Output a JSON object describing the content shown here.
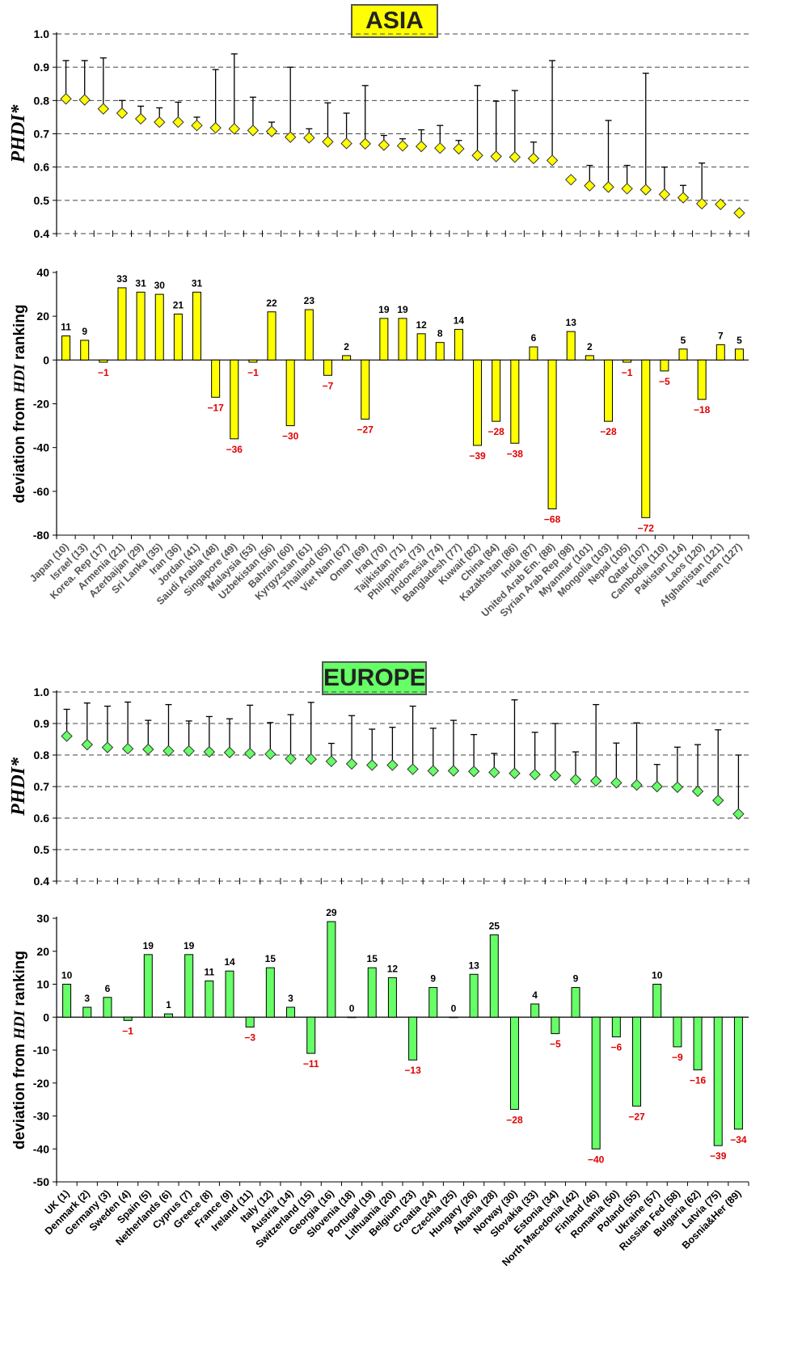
{
  "chart_data": [
    {
      "type": "scatter",
      "panel": "ASIA PHDI",
      "title": "ASIA",
      "ylabel": "PHDI*",
      "ylim": [
        0.4,
        1.0
      ],
      "yticks": [
        "0.4",
        "0.5",
        "0.6",
        "0.7",
        "0.8",
        "0.9",
        "1.0"
      ],
      "grid": true,
      "marker_color": "#ffff00",
      "categories": [
        "Japan (10)",
        "Israel (13)",
        "Korea. Rep (17)",
        "Armenia (21)",
        "Azerbaijan (29)",
        "Sri Lanka (35)",
        "Iran (36)",
        "Jordan (41)",
        "Saudi Arabia (48)",
        "Singapore (49)",
        "Malaysia (53)",
        "Uzbekistan (56)",
        "Bahrain (60)",
        "Kyrgyzstan (61)",
        "Thailand (65)",
        "Viet Nam (67)",
        "Oman (69)",
        "Iraq (70)",
        "Tajikistan (71)",
        "Philippines (73)",
        "Indonesia (74)",
        "Bangladesh (77)",
        "Kuwait (82)",
        "China (84)",
        "Kazakhstan (86)",
        "India (87)",
        "United Arab Em. (88)",
        "Syrian Arab Rep (98)",
        "Myanmar (101)",
        "Mongolia (103)",
        "Nepal (105)",
        "Qatar (107)",
        "Cambodia (110)",
        "Pakistan (114)",
        "Laos (120)",
        "Afghanistan (121)",
        "Yemen (127)"
      ],
      "values": [
        0.805,
        0.802,
        0.775,
        0.762,
        0.745,
        0.735,
        0.735,
        0.725,
        0.718,
        0.715,
        0.71,
        0.707,
        0.69,
        0.688,
        0.676,
        0.671,
        0.67,
        0.666,
        0.664,
        0.662,
        0.657,
        0.655,
        0.635,
        0.632,
        0.63,
        0.626,
        0.62,
        0.562,
        0.544,
        0.54,
        0.535,
        0.532,
        0.518,
        0.508,
        0.49,
        0.488,
        0.462
      ],
      "error_bar_top": [
        0.92,
        0.92,
        0.928,
        0.8,
        0.783,
        0.778,
        0.795,
        0.75,
        0.893,
        0.94,
        0.81,
        0.735,
        0.9,
        0.715,
        0.793,
        0.762,
        0.845,
        0.695,
        0.685,
        0.712,
        0.725,
        0.68,
        0.845,
        0.798,
        0.83,
        0.675,
        0.92,
        null,
        0.605,
        0.74,
        0.605,
        0.882,
        0.6,
        0.545,
        0.612,
        null,
        null
      ]
    },
    {
      "type": "bar",
      "panel": "ASIA deviation",
      "ylabel": "deviation from HDI ranking",
      "ylim": [
        -80,
        40
      ],
      "yticks": [
        "40",
        "20",
        "0",
        "-20",
        "-40",
        "-60",
        "-80"
      ],
      "grid": false,
      "bar_color": "#ffff00",
      "categories": [
        "Japan (10)",
        "Israel (13)",
        "Korea. Rep (17)",
        "Armenia (21)",
        "Azerbaijan (29)",
        "Sri Lanka (35)",
        "Iran (36)",
        "Jordan (41)",
        "Saudi Arabia (48)",
        "Singapore (49)",
        "Malaysia (53)",
        "Uzbekistan (56)",
        "Bahrain (60)",
        "Kyrgyzstan (61)",
        "Thailand (65)",
        "Viet Nam (67)",
        "Oman (69)",
        "Iraq (70)",
        "Tajikistan (71)",
        "Philippines (73)",
        "Indonesia (74)",
        "Bangladesh (77)",
        "Kuwait (82)",
        "China (84)",
        "Kazakhstan (86)",
        "India (87)",
        "United Arab Em. (88)",
        "Syrian Arab Rep (98)",
        "Myanmar (101)",
        "Mongolia (103)",
        "Nepal (105)",
        "Qatar (107)",
        "Cambodia (110)",
        "Pakistan (114)",
        "Laos (120)",
        "Afghanistan (121)",
        "Yemen (127)"
      ],
      "values": [
        11,
        9,
        -1,
        33,
        31,
        30,
        21,
        31,
        -17,
        -36,
        -1,
        22,
        -30,
        23,
        -7,
        2,
        -27,
        19,
        19,
        12,
        8,
        14,
        -39,
        -28,
        -38,
        6,
        -68,
        13,
        2,
        -28,
        -1,
        -72,
        -5,
        5,
        -18,
        7,
        5
      ],
      "labels": [
        "11",
        "9",
        "−1",
        "33",
        "31",
        "30",
        "21",
        "31",
        "−17",
        "−36",
        "−1",
        "22",
        "−30",
        "23",
        "−7",
        "2",
        "−27",
        "19",
        "19",
        "12",
        "8",
        "14",
        "−39",
        "−28",
        "−38",
        "6",
        "−68",
        "13",
        "2",
        "−28",
        "−1",
        "−72",
        "−5",
        "5",
        "−18",
        "7",
        "5"
      ]
    },
    {
      "type": "scatter",
      "panel": "EUROPE PHDI",
      "title": "EUROPE",
      "ylabel": "PHDI*",
      "ylim": [
        0.4,
        1.0
      ],
      "yticks": [
        "0.4",
        "0.5",
        "0.6",
        "0.7",
        "0.8",
        "0.9",
        "1.0"
      ],
      "grid": true,
      "marker_color": "#66ff66",
      "categories": [
        "UK (1)",
        "Denmark (2)",
        "Germany (3)",
        "Sweden (4)",
        "Spain (5)",
        "Netherlands (6)",
        "Cyprus (7)",
        "Greece (8)",
        "France (9)",
        "Ireland (11)",
        "Italy (12)",
        "Austria (14)",
        "Switzerland (15)",
        "Georgia (16)",
        "Slovenia (18)",
        "Portugal (19)",
        "Lithuania (20)",
        "Belgium (23)",
        "Croatia (24)",
        "Czechia (25)",
        "Hungary (26)",
        "Albania (28)",
        "Norway (30)",
        "Slovakia (33)",
        "Estonia (34)",
        "North Macedonia (42)",
        "Finland (46)",
        "Romania (50)",
        "Poland (55)",
        "Ukraine (57)",
        "Russian Fed (58)",
        "Bulgaria (62)",
        "Latvia (75)",
        "Bosnia&Her (89)"
      ],
      "values": [
        0.86,
        0.833,
        0.824,
        0.82,
        0.818,
        0.813,
        0.813,
        0.81,
        0.808,
        0.805,
        0.803,
        0.788,
        0.787,
        0.78,
        0.772,
        0.768,
        0.768,
        0.755,
        0.75,
        0.75,
        0.748,
        0.745,
        0.742,
        0.738,
        0.735,
        0.722,
        0.718,
        0.712,
        0.705,
        0.7,
        0.698,
        0.685,
        0.656,
        0.613
      ],
      "error_bar_top": [
        0.945,
        0.965,
        0.955,
        0.968,
        0.91,
        0.96,
        0.908,
        0.922,
        0.915,
        0.958,
        0.903,
        0.928,
        0.967,
        0.837,
        0.925,
        0.882,
        0.888,
        0.955,
        0.885,
        0.91,
        0.865,
        0.805,
        0.975,
        0.872,
        0.9,
        0.81,
        0.96,
        0.838,
        0.902,
        0.77,
        0.825,
        0.833,
        0.88,
        0.8
      ]
    },
    {
      "type": "bar",
      "panel": "EUROPE deviation",
      "ylabel": "deviation from HDI ranking",
      "ylim": [
        -50,
        30
      ],
      "yticks": [
        "30",
        "20",
        "10",
        "0",
        "-10",
        "-20",
        "-30",
        "-40",
        "-50"
      ],
      "grid": false,
      "bar_color": "#66ff66",
      "categories": [
        "UK (1)",
        "Denmark (2)",
        "Germany (3)",
        "Sweden (4)",
        "Spain (5)",
        "Netherlands (6)",
        "Cyprus (7)",
        "Greece (8)",
        "France (9)",
        "Ireland (11)",
        "Italy (12)",
        "Austria (14)",
        "Switzerland (15)",
        "Georgia (16)",
        "Slovenia (18)",
        "Portugal (19)",
        "Lithuania (20)",
        "Belgium (23)",
        "Croatia (24)",
        "Czechia (25)",
        "Hungary (26)",
        "Albania (28)",
        "Norway (30)",
        "Slovakia (33)",
        "Estonia (34)",
        "North Macedonia (42)",
        "Finland (46)",
        "Romania (50)",
        "Poland (55)",
        "Ukraine (57)",
        "Russian Fed (58)",
        "Bulgaria (62)",
        "Latvia (75)",
        "Bosnia&Her (89)"
      ],
      "values": [
        10,
        3,
        6,
        -1,
        19,
        1,
        19,
        11,
        14,
        -3,
        15,
        3,
        -11,
        29,
        0,
        15,
        12,
        -13,
        9,
        0,
        13,
        25,
        -28,
        4,
        -5,
        9,
        -40,
        -6,
        -27,
        10,
        -9,
        -16,
        -39,
        -34
      ],
      "labels": [
        "10",
        "3",
        "6",
        "−1",
        "19",
        "1",
        "19",
        "11",
        "14",
        "−3",
        "15",
        "3",
        "−11",
        "29",
        "0",
        "15",
        "12",
        "−13",
        "9",
        "0",
        "13",
        "25",
        "−28",
        "4",
        "−5",
        "9",
        "−40",
        "−6",
        "−27",
        "10",
        "−9",
        "−16",
        "−39",
        "−34"
      ]
    }
  ]
}
